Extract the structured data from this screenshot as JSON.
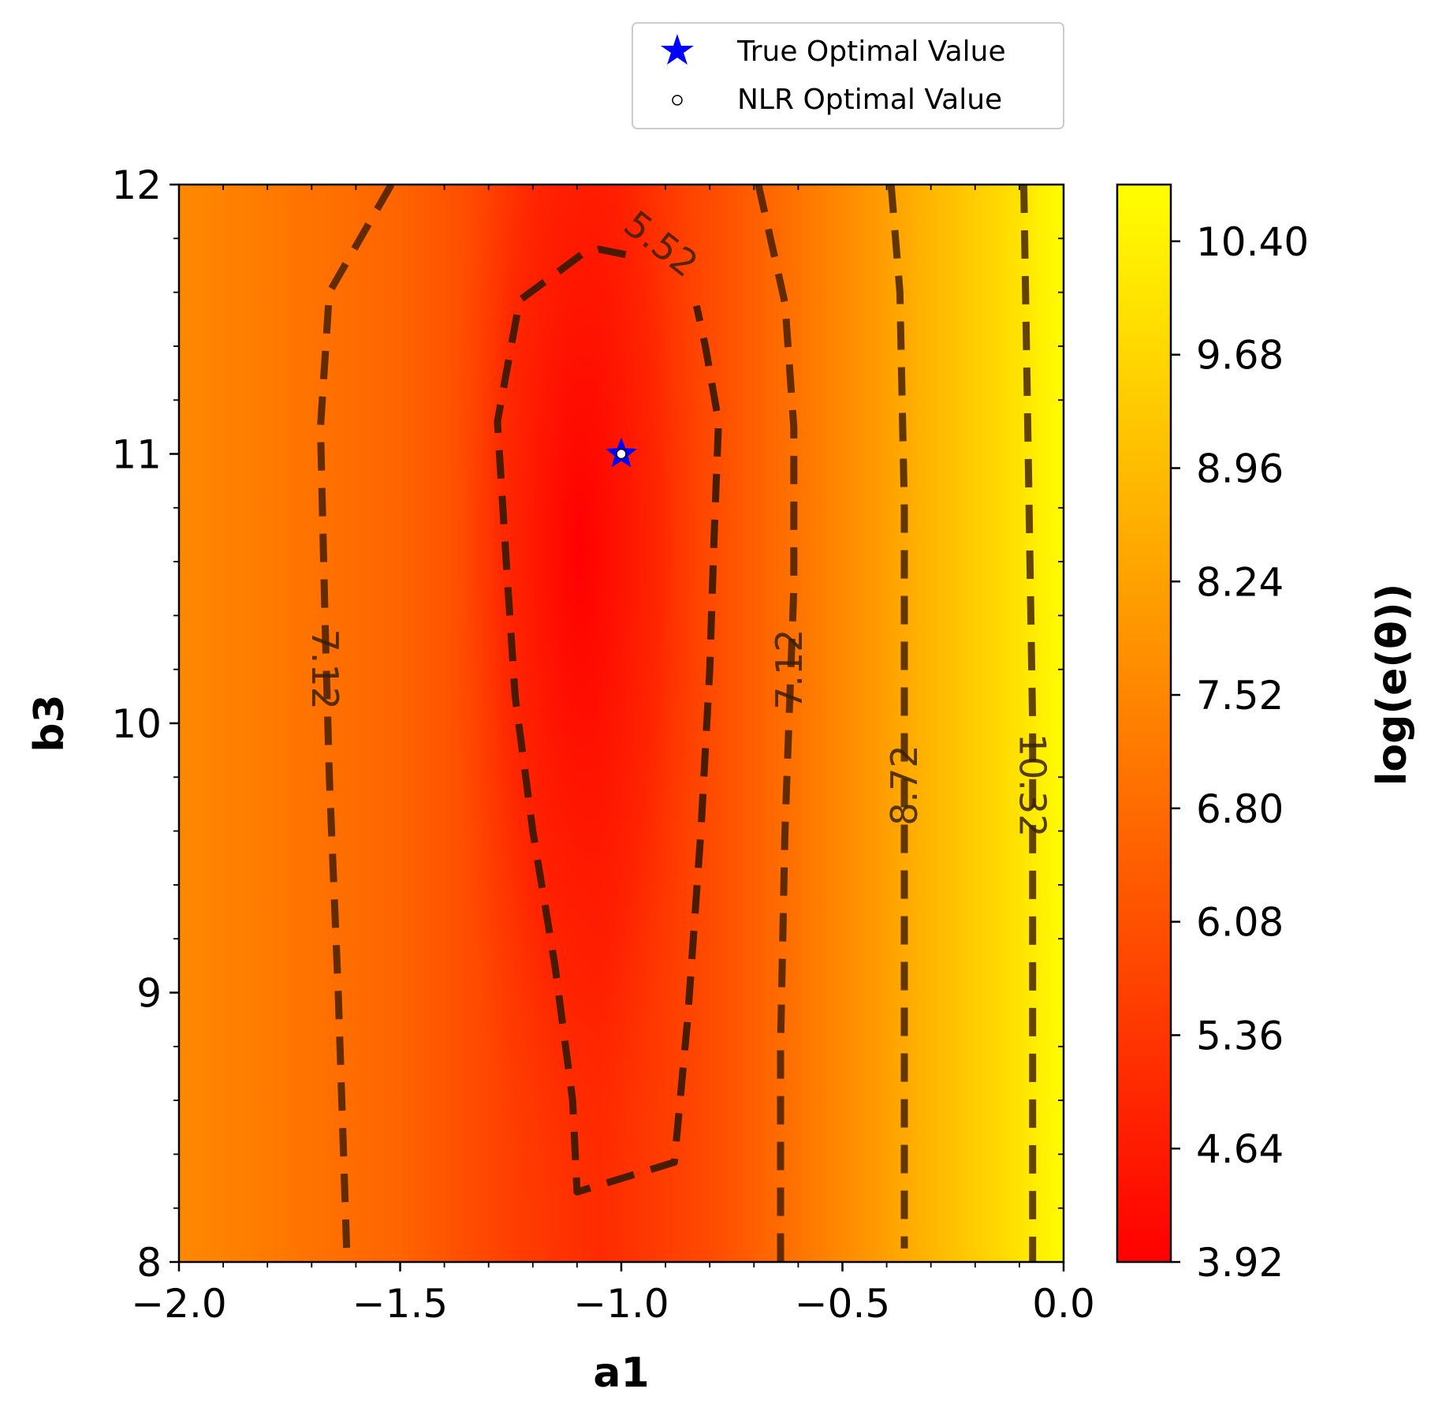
{
  "chart_data": {
    "type": "heatmap",
    "title": "",
    "xlabel": "a1",
    "ylabel": "b3",
    "xlim": [
      -2.0,
      0.0
    ],
    "ylim": [
      8,
      12
    ],
    "x_ticks": [
      "−2.0",
      "−1.5",
      "−1.0",
      "−0.5",
      "0.0"
    ],
    "x_tick_values": [
      -2.0,
      -1.5,
      -1.0,
      -0.5,
      0.0
    ],
    "y_ticks": [
      "8",
      "9",
      "10",
      "11",
      "12"
    ],
    "y_tick_values": [
      8,
      9,
      10,
      11,
      12
    ],
    "colormap": "autumn",
    "colormap_low": "#ff0000",
    "colormap_high": "#ffff00",
    "colorbar": {
      "label": "log(e(θ))",
      "range": [
        3.92,
        10.76
      ],
      "ticks": [
        "3.92",
        "4.64",
        "5.36",
        "6.08",
        "6.80",
        "7.52",
        "8.24",
        "8.96",
        "9.68",
        "10.40"
      ],
      "tick_values": [
        3.92,
        4.64,
        5.36,
        6.08,
        6.8,
        7.52,
        8.24,
        8.96,
        9.68,
        10.4
      ]
    },
    "minimum": {
      "a1": -1.08,
      "b3": 10.65,
      "value": 3.92
    },
    "contours": [
      {
        "level": "5.52",
        "points": [
          [
            -0.99,
            11.74
          ],
          [
            -1.05,
            11.76
          ],
          [
            -1.09,
            11.74
          ],
          [
            -1.23,
            11.57
          ],
          [
            -1.28,
            11.12
          ],
          [
            -1.26,
            10.6
          ],
          [
            -1.24,
            10.1
          ],
          [
            -1.2,
            9.6
          ],
          [
            -1.15,
            9.1
          ],
          [
            -1.11,
            8.6
          ],
          [
            -1.1,
            8.26
          ],
          [
            -0.88,
            8.37
          ],
          [
            -0.85,
            8.9
          ],
          [
            -0.82,
            9.6
          ],
          [
            -0.8,
            10.2
          ],
          [
            -0.79,
            10.7
          ],
          [
            -0.78,
            11.12
          ],
          [
            -0.81,
            11.4
          ],
          [
            -0.83,
            11.55
          ]
        ],
        "label_pos": [
          -0.91,
          11.78
        ],
        "label_angle": 38
      },
      {
        "level": "7.12",
        "points": [
          [
            -1.52,
            12.0
          ],
          [
            -1.66,
            11.6
          ],
          [
            -1.68,
            11.1
          ],
          [
            -1.67,
            10.4
          ],
          [
            -1.66,
            9.8
          ],
          [
            -1.64,
            9.0
          ],
          [
            -1.62,
            8.0
          ]
        ],
        "label_pos": [
          -1.67,
          10.2
        ],
        "label_angle": 90
      },
      {
        "level": "7.12",
        "points": [
          [
            -0.69,
            12.0
          ],
          [
            -0.63,
            11.56
          ],
          [
            -0.61,
            11.1
          ],
          [
            -0.61,
            10.5
          ],
          [
            -0.63,
            9.6
          ],
          [
            -0.64,
            8.8
          ],
          [
            -0.64,
            8.0
          ]
        ],
        "label_pos": [
          -0.62,
          10.2
        ],
        "label_angle": -90
      },
      {
        "level": "8.72",
        "points": [
          [
            -0.39,
            12.0
          ],
          [
            -0.37,
            11.6
          ],
          [
            -0.36,
            10.8
          ],
          [
            -0.36,
            10.0
          ],
          [
            -0.36,
            9.0
          ],
          [
            -0.36,
            8.05
          ]
        ],
        "label_pos": [
          -0.36,
          9.77
        ],
        "label_angle": -90
      },
      {
        "level": "10.32",
        "points": [
          [
            -0.09,
            12.0
          ],
          [
            -0.08,
            11.0
          ],
          [
            -0.07,
            10.0
          ],
          [
            -0.07,
            9.0
          ],
          [
            -0.07,
            8.0
          ]
        ],
        "label_pos": [
          -0.07,
          9.77
        ],
        "label_angle": 90
      }
    ],
    "markers": [
      {
        "name": "True Optimal Value",
        "a1": -1.0,
        "b3": 11.0,
        "shape": "star",
        "color": "#0000ff"
      },
      {
        "name": "NLR Optimal Value",
        "a1": -1.0,
        "b3": 11.0,
        "shape": "circle",
        "color": "#ffffff"
      }
    ],
    "legend": {
      "placement": "top-right, above plot",
      "items": [
        "True Optimal Value",
        "NLR Optimal Value"
      ]
    },
    "grid": false
  }
}
